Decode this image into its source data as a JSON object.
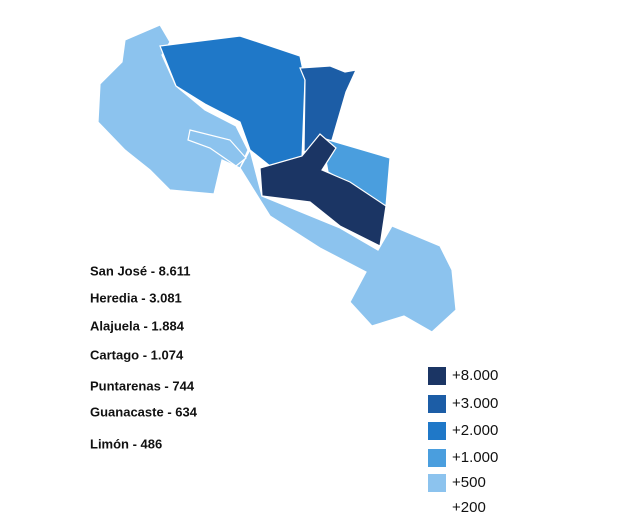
{
  "labels": [
    "San José - 8.611",
    "Heredia - 3.081",
    "Alajuela - 1.884",
    "Cartago - 1.074",
    "Puntarenas - 744",
    "Guanacaste - 634",
    "Limón - 486"
  ],
  "legend": [
    {
      "label": "+8.000",
      "color": "#1b3564"
    },
    {
      "label": "+3.000",
      "color": "#1c5da6"
    },
    {
      "label": "+2.000",
      "color": "#1f78c8"
    },
    {
      "label": "+1.000",
      "color": "#4a9ede"
    },
    {
      "label": "+500",
      "color": "#8cc3ee"
    },
    {
      "label": "+200",
      "color": "#ffffff"
    }
  ]
}
